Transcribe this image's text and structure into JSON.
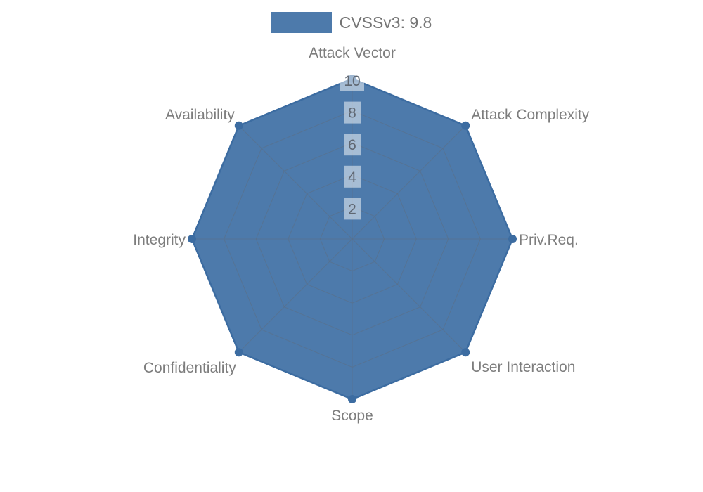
{
  "chart_data": {
    "type": "radar",
    "title": "",
    "categories": [
      "Attack Vector",
      "Attack Complexity",
      "Priv.Req.",
      "User Interaction",
      "Scope",
      "Confidentiality",
      "Integrity",
      "Availability"
    ],
    "series": [
      {
        "name": "CVSSv3: 9.8",
        "values": [
          10,
          10,
          10,
          10,
          10,
          10,
          10,
          10
        ],
        "fill_color": "#4d7aab",
        "line_color": "#3c6ca1"
      }
    ],
    "r_axis": {
      "min": 0,
      "max": 10,
      "ticks": [
        2,
        4,
        6,
        8,
        10
      ]
    },
    "grid": true,
    "legend_position": "top",
    "styles": {
      "grid_color": "#5c6e85",
      "label_color": "#7d7d7d",
      "tick_color": "#5f6772",
      "tick_bg": "rgba(255,255,255,0.5)",
      "background": "#ffffff"
    }
  }
}
